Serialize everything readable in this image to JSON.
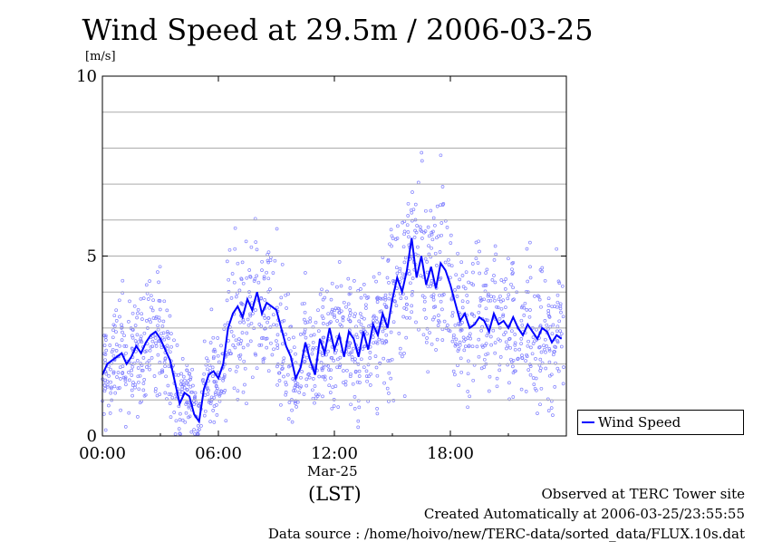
{
  "title": "Wind Speed at 29.5m / 2006-03-25",
  "unit_label": "[m/s]",
  "date_label": "Mar-25",
  "axis_note": "(LST)",
  "info": {
    "line1": "Observed at TERC Tower site",
    "line2": "Created Automatically at 2006-03-25/23:55:55",
    "line3": "Data source : /home/hoivo/new/TERC-data/sorted_data/FLUX.10s.dat"
  },
  "colors": {
    "series": "#0000ff",
    "scatter": "#8080ff",
    "grid": "#aaaaaa"
  },
  "chart_data": {
    "type": "line",
    "title": "Wind Speed at 29.5m / 2006-03-25",
    "ylabel": "[m/s]",
    "xlabel": "(LST)",
    "xlim": [
      0,
      24
    ],
    "ylim": [
      0,
      10
    ],
    "xticks": [
      0,
      6,
      12,
      18
    ],
    "xtick_labels": [
      "00:00",
      "06:00",
      "12:00",
      "18:00"
    ],
    "yticks": [
      0,
      5,
      10
    ],
    "ytick_labels": [
      "0",
      "5",
      "10"
    ],
    "grid": true,
    "legend": "right",
    "series": [
      {
        "name": "Wind Speed",
        "x": [
          0,
          0.25,
          0.5,
          0.75,
          1,
          1.25,
          1.5,
          1.75,
          2,
          2.25,
          2.5,
          2.75,
          3,
          3.25,
          3.5,
          3.75,
          4,
          4.25,
          4.5,
          4.75,
          5,
          5.25,
          5.5,
          5.75,
          6,
          6.25,
          6.5,
          6.75,
          7,
          7.25,
          7.5,
          7.75,
          8,
          8.25,
          8.5,
          8.75,
          9,
          9.25,
          9.5,
          9.75,
          10,
          10.25,
          10.5,
          10.75,
          11,
          11.25,
          11.5,
          11.75,
          12,
          12.25,
          12.5,
          12.75,
          13,
          13.25,
          13.5,
          13.75,
          14,
          14.25,
          14.5,
          14.75,
          15,
          15.25,
          15.5,
          15.75,
          16,
          16.25,
          16.5,
          16.75,
          17,
          17.25,
          17.5,
          17.75,
          18,
          18.25,
          18.5,
          18.75,
          19,
          19.25,
          19.5,
          19.75,
          20,
          20.25,
          20.5,
          20.75,
          21,
          21.25,
          21.5,
          21.75,
          22,
          22.25,
          22.5,
          22.75,
          23,
          23.25,
          23.5,
          23.75
        ],
        "values": [
          1.7,
          2.0,
          2.1,
          2.2,
          2.3,
          2.0,
          2.2,
          2.5,
          2.3,
          2.6,
          2.8,
          2.9,
          2.7,
          2.4,
          2.1,
          1.5,
          0.9,
          1.2,
          1.1,
          0.6,
          0.4,
          1.3,
          1.7,
          1.8,
          1.6,
          2.0,
          3.0,
          3.4,
          3.6,
          3.3,
          3.8,
          3.5,
          4.0,
          3.4,
          3.7,
          3.6,
          3.5,
          3.0,
          2.5,
          2.2,
          1.6,
          1.9,
          2.6,
          2.1,
          1.7,
          2.7,
          2.3,
          3.0,
          2.4,
          2.8,
          2.2,
          2.9,
          2.7,
          2.2,
          2.9,
          2.4,
          3.1,
          2.8,
          3.4,
          3.0,
          3.8,
          4.4,
          4.0,
          4.6,
          5.5,
          4.4,
          5.0,
          4.2,
          4.7,
          4.1,
          4.8,
          4.6,
          4.2,
          3.7,
          3.2,
          3.4,
          3.0,
          3.1,
          3.3,
          3.2,
          2.9,
          3.4,
          3.1,
          3.2,
          3.0,
          3.3,
          3.0,
          2.8,
          3.1,
          2.9,
          2.7,
          3.0,
          2.9,
          2.6,
          2.8,
          2.7
        ]
      }
    ]
  }
}
